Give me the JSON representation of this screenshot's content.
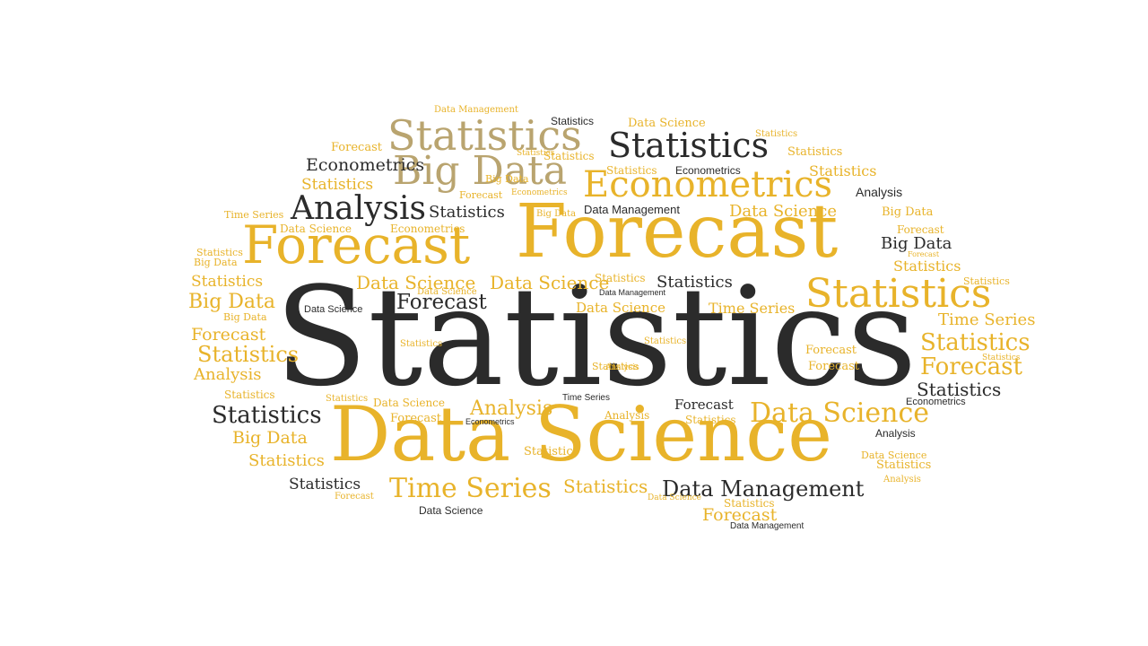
{
  "colors": {
    "gold": "#e8b32a",
    "dark": "#2b2b2b",
    "tan": "#b9a46f",
    "background": "#ffffff"
  },
  "words": [
    "Statistics",
    "Data Science",
    "Forecast",
    "Forecast",
    "Big Data",
    "Statistics",
    "Statistics",
    "Econometrics",
    "Analysis",
    "Statistics",
    "Time Series",
    "Data Management",
    "Statistics",
    "Data Science",
    "Time Series",
    "Data Science",
    "Data Management",
    "Data Science",
    "Analysis",
    "Forecast",
    "Big Data",
    "Statistics",
    "Forecast",
    "Statistics",
    "Big Data",
    "Statistics",
    "Statistics",
    "Analysis",
    "Statistics",
    "Data Science",
    "Big Data",
    "Big Data",
    "Statistics",
    "Forecast",
    "Econometrics",
    "Statistics",
    "Statistics",
    "Forecast",
    "Statistics",
    "Data Science",
    "Analysis",
    "Data Science",
    "Data Science",
    "Statistics",
    "Time Series",
    "Forecast",
    "Statistics",
    "Data Science",
    "Statistics",
    "Forecast",
    "Forecast",
    "Statistics",
    "Forecast",
    "Econometrics",
    "Statistics",
    "Big Data",
    "Time Series",
    "Statistics",
    "Statistics",
    "Statistics",
    "Statistics",
    "Forecast",
    "Analysis",
    "Statistics",
    "Statistics",
    "Econometrics",
    "Statistics",
    "Forecast",
    "Statistics",
    "Statistics",
    "Data Management",
    "Statistics",
    "Big Data",
    "Data Science",
    "Analysis",
    "Statistics",
    "Data Science",
    "Time Series",
    "Statistics",
    "Analysis",
    "Statistics",
    "Econometrics",
    "Data Management",
    "Econometrics",
    "Forecast",
    "Statistics",
    "Data Science",
    "Big Data",
    "Big Data",
    "Forecast",
    "Analysis",
    "Statistics",
    "Data Science",
    "Statistics",
    "Econometrics",
    "Data Science",
    "Forecast",
    "Data Management",
    "Statistics"
  ]
}
